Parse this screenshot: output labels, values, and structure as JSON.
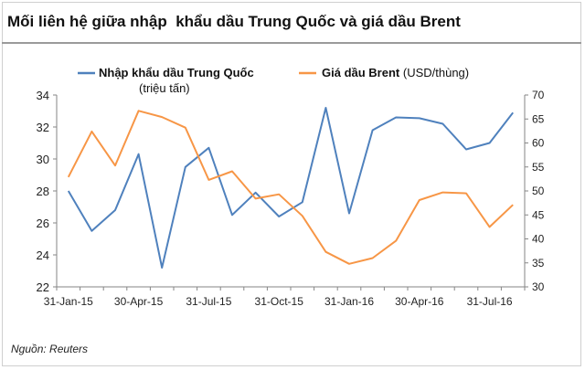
{
  "title": "Mối liên hệ giữa nhập  khẩu dầu Trung Quốc và giá dầu Brent",
  "source": "Nguồn: Reuters",
  "chart_data": {
    "type": "line",
    "x": [
      "31-Jan-15",
      "28-Feb-15",
      "31-Mar-15",
      "30-Apr-15",
      "31-May-15",
      "30-Jun-15",
      "31-Jul-15",
      "31-Aug-15",
      "30-Sep-15",
      "31-Oct-15",
      "30-Nov-15",
      "31-Dec-15",
      "31-Jan-16",
      "29-Feb-16",
      "31-Mar-16",
      "30-Apr-16",
      "31-May-16",
      "30-Jun-16",
      "31-Jul-16",
      "31-Aug-16"
    ],
    "xticks": [
      "31-Jan-15",
      "30-Apr-15",
      "31-Jul-15",
      "31-Oct-15",
      "31-Jan-16",
      "30-Apr-16",
      "31-Jul-16"
    ],
    "yticks_left": [
      22,
      24,
      26,
      28,
      30,
      32,
      34
    ],
    "yticks_right": [
      30,
      35,
      40,
      45,
      50,
      55,
      60,
      65,
      70
    ],
    "ylim_left": [
      22,
      34
    ],
    "ylim_right": [
      30,
      70
    ],
    "grid": false,
    "legend_position": "top",
    "series": [
      {
        "name": "Nhập khẩu dầu Trung Quốc",
        "name_unit": "(triệu tấn)",
        "axis": "left",
        "color": "#4f81bd",
        "values": [
          28.0,
          25.5,
          26.8,
          30.3,
          23.2,
          29.5,
          30.7,
          26.5,
          27.9,
          26.4,
          27.3,
          33.2,
          26.6,
          31.8,
          32.6,
          32.55,
          32.2,
          30.6,
          31.0,
          32.9
        ]
      },
      {
        "name": "Giá dầu Brent",
        "name_unit": "(USD/thùng)",
        "axis": "right",
        "color": "#f79646",
        "values": [
          52.9,
          62.4,
          55.3,
          66.7,
          65.4,
          63.2,
          52.3,
          54.1,
          48.4,
          49.3,
          44.8,
          37.3,
          34.8,
          36.0,
          39.6,
          48.1,
          49.7,
          49.5,
          42.5,
          47.1
        ]
      }
    ]
  }
}
